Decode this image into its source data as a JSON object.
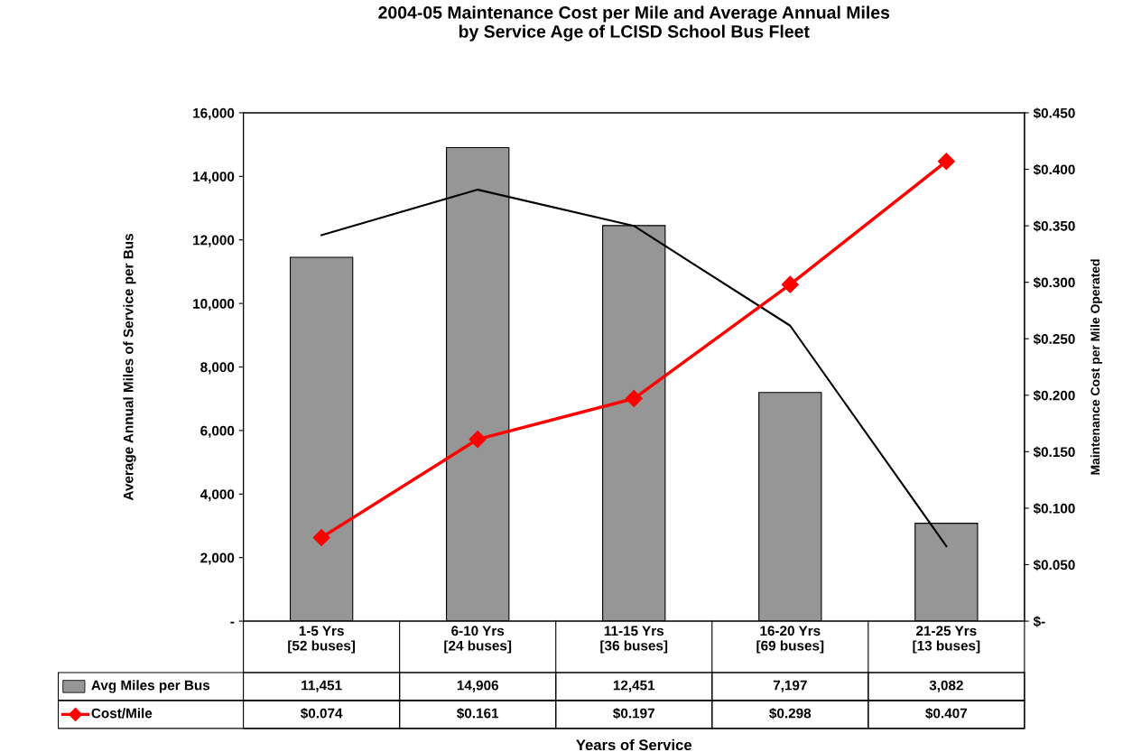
{
  "chart_data": {
    "type": "bar",
    "title": "2004-05 Maintenance Cost per Mile and Average Annual Miles\nby Service Age of LCISD School Bus Fleet",
    "categories": [
      "1-5 Yrs\n[52 buses]",
      "6-10 Yrs\n[24 buses]",
      "11-15 Yrs\n[36 buses]",
      "16-20 Yrs\n[69 buses]",
      "21-25 Yrs\n[13 buses]"
    ],
    "series": [
      {
        "name": "Avg Miles per Bus",
        "color": "#969696",
        "values": [
          11451,
          14906,
          12451,
          7197,
          3082
        ],
        "value_labels": [
          "11,451",
          "14,906",
          "12,451",
          "7,197",
          "3,082"
        ]
      },
      {
        "name": "Cost/Mile",
        "type": "line",
        "axis": "y2",
        "color": "#ff0000",
        "marker": "diamond",
        "values": [
          0.074,
          0.161,
          0.197,
          0.298,
          0.407
        ],
        "value_labels": [
          "$0.074",
          "$0.161",
          "$0.197",
          "$0.298",
          "$0.407"
        ]
      },
      {
        "type": "line",
        "color": "#000000",
        "x": [
          "1-5 Yrs\n[52 buses]",
          "6-10 Yrs\n[24 buses]",
          "11-15 Yrs\n[36 buses]",
          "16-20 Yrs\n[69 buses]",
          "21-25 Yrs\n[13 buses]"
        ],
        "values": [
          12150,
          13580,
          12440,
          9300,
          2360
        ]
      }
    ],
    "annotations": [
      "Years of Service"
    ],
    "ylabel": "Average Annual Miles of Service per Bus",
    "y2label": "Maintenance Cost per Mile Operated",
    "ylim": [
      0,
      16000
    ],
    "yticks": [
      {
        "value": 0,
        "label": "-"
      },
      {
        "value": 2000,
        "label": "2,000"
      },
      {
        "value": 4000,
        "label": "4,000"
      },
      {
        "value": 6000,
        "label": "6,000"
      },
      {
        "value": 8000,
        "label": "8,000"
      },
      {
        "value": 10000,
        "label": "10,000"
      },
      {
        "value": 12000,
        "label": "12,000"
      },
      {
        "value": 14000,
        "label": "14,000"
      },
      {
        "value": 16000,
        "label": "16,000"
      }
    ],
    "y2lim": [
      0,
      0.45
    ],
    "y2ticks": [
      {
        "value": 0,
        "label": "$-"
      },
      {
        "value": 0.05,
        "label": "$0.050"
      },
      {
        "value": 0.1,
        "label": "$0.100"
      },
      {
        "value": 0.15,
        "label": "$0.150"
      },
      {
        "value": 0.2,
        "label": "$0.200"
      },
      {
        "value": 0.25,
        "label": "$0.250"
      },
      {
        "value": 0.3,
        "label": "$0.300"
      },
      {
        "value": 0.35,
        "label": "$0.350"
      },
      {
        "value": 0.4,
        "label": "$0.400"
      },
      {
        "value": 0.45,
        "label": "$0.450"
      }
    ],
    "legend": "bottom",
    "grid": false
  }
}
